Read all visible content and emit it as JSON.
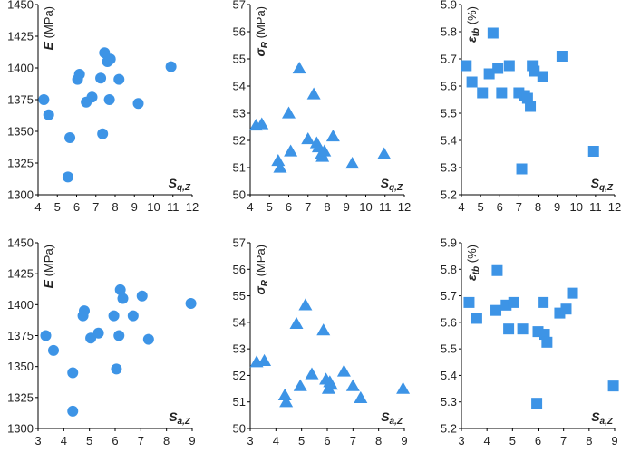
{
  "figure": {
    "marker_color": "#3d94e6"
  },
  "chart_data": [
    {
      "type": "scatter",
      "marker": "circle",
      "ylabel": {
        "sym": "E",
        "sub": "",
        "unit": "(MPa)"
      },
      "xlabel": {
        "sym": "S",
        "sub": "q,Z"
      },
      "xlim": [
        4,
        12
      ],
      "xticks": [
        4,
        5,
        6,
        7,
        8,
        9,
        10,
        11,
        12
      ],
      "ylim": [
        1300,
        1450
      ],
      "yticks": [
        1300,
        1325,
        1350,
        1375,
        1400,
        1425,
        1450
      ],
      "x": [
        4.3,
        4.55,
        5.55,
        5.65,
        6.05,
        6.15,
        6.5,
        6.8,
        7.25,
        7.35,
        7.45,
        7.6,
        7.7,
        7.75,
        8.2,
        9.2,
        10.9
      ],
      "y": [
        1375,
        1363,
        1314,
        1345,
        1391,
        1395,
        1373,
        1377,
        1392,
        1348,
        1412,
        1405,
        1375,
        1407,
        1391,
        1372,
        1401
      ]
    },
    {
      "type": "scatter",
      "marker": "triangle",
      "ylabel": {
        "sym": "σ",
        "sub": "R",
        "unit": "(MPa)"
      },
      "xlabel": {
        "sym": "S",
        "sub": "q,Z"
      },
      "xlim": [
        4,
        12
      ],
      "xticks": [
        4,
        5,
        6,
        7,
        8,
        9,
        10,
        11,
        12
      ],
      "ylim": [
        50,
        57
      ],
      "yticks": [
        50,
        51,
        52,
        53,
        54,
        55,
        56,
        57
      ],
      "x": [
        4.3,
        4.6,
        5.45,
        5.55,
        6.0,
        6.1,
        6.55,
        7.0,
        7.3,
        7.45,
        7.55,
        7.7,
        7.75,
        7.85,
        8.3,
        9.3,
        10.95
      ],
      "y": [
        52.55,
        52.6,
        51.25,
        51.0,
        53.0,
        51.6,
        54.65,
        52.05,
        53.7,
        51.9,
        51.75,
        51.5,
        51.4,
        51.6,
        52.15,
        51.15,
        51.5
      ]
    },
    {
      "type": "scatter",
      "marker": "square",
      "ylabel": {
        "sym": "ε",
        "sub": "tb",
        "unit": "(%)"
      },
      "xlabel": {
        "sym": "S",
        "sub": "q,Z"
      },
      "xlim": [
        4,
        12
      ],
      "xticks": [
        4,
        5,
        6,
        7,
        8,
        9,
        10,
        11,
        12
      ],
      "ylim": [
        5.2,
        5.9
      ],
      "yticks": [
        5.2,
        5.3,
        5.4,
        5.5,
        5.6,
        5.7,
        5.8,
        5.9
      ],
      "x": [
        4.25,
        4.55,
        5.1,
        5.45,
        5.65,
        5.9,
        6.1,
        6.5,
        7.0,
        7.15,
        7.3,
        7.45,
        7.6,
        7.7,
        7.8,
        8.25,
        9.25,
        10.9
      ],
      "y": [
        5.675,
        5.615,
        5.575,
        5.645,
        5.795,
        5.665,
        5.575,
        5.675,
        5.575,
        5.295,
        5.565,
        5.555,
        5.525,
        5.675,
        5.655,
        5.635,
        5.71,
        5.36
      ]
    },
    {
      "type": "scatter",
      "marker": "circle",
      "ylabel": {
        "sym": "E",
        "sub": "",
        "unit": "(MPa)"
      },
      "xlabel": {
        "sym": "S",
        "sub": "a,Z"
      },
      "xlim": [
        3,
        9
      ],
      "xticks": [
        3,
        4,
        5,
        6,
        7,
        8,
        9
      ],
      "ylim": [
        1300,
        1450
      ],
      "yticks": [
        1300,
        1325,
        1350,
        1375,
        1400,
        1425,
        1450
      ],
      "x": [
        3.3,
        3.6,
        4.35,
        4.35,
        4.75,
        4.8,
        5.05,
        5.35,
        5.95,
        6.05,
        6.15,
        6.2,
        6.3,
        6.7,
        7.05,
        7.3,
        8.95
      ],
      "y": [
        1375,
        1363,
        1314,
        1345,
        1391,
        1395,
        1373,
        1377,
        1391,
        1348,
        1375,
        1412,
        1405,
        1391,
        1407,
        1372,
        1401
      ]
    },
    {
      "type": "scatter",
      "marker": "triangle",
      "ylabel": {
        "sym": "σ",
        "sub": "R",
        "unit": "(MPa)"
      },
      "xlabel": {
        "sym": "S",
        "sub": "a,Z"
      },
      "xlim": [
        3,
        9
      ],
      "xticks": [
        3,
        4,
        5,
        6,
        7,
        8,
        9
      ],
      "ylim": [
        50,
        57
      ],
      "yticks": [
        50,
        51,
        52,
        53,
        54,
        55,
        56,
        57
      ],
      "x": [
        3.25,
        3.55,
        4.35,
        4.4,
        4.8,
        4.95,
        5.15,
        5.4,
        5.85,
        5.95,
        6.05,
        6.15,
        6.1,
        6.65,
        7.0,
        7.3,
        8.95
      ],
      "y": [
        52.5,
        52.55,
        51.25,
        51.0,
        53.95,
        51.6,
        54.65,
        52.05,
        53.7,
        51.85,
        51.5,
        51.65,
        51.75,
        52.15,
        51.6,
        51.15,
        51.5
      ]
    },
    {
      "type": "scatter",
      "marker": "square",
      "ylabel": {
        "sym": "ε",
        "sub": "tb",
        "unit": "(%)"
      },
      "xlabel": {
        "sym": "S",
        "sub": "a,Z"
      },
      "xlim": [
        3,
        9
      ],
      "xticks": [
        3,
        4,
        5,
        6,
        7,
        8,
        9
      ],
      "ylim": [
        5.2,
        5.9
      ],
      "yticks": [
        5.2,
        5.3,
        5.4,
        5.5,
        5.6,
        5.7,
        5.8,
        5.9
      ],
      "x": [
        3.3,
        3.6,
        4.35,
        4.4,
        4.75,
        4.85,
        5.05,
        5.4,
        5.95,
        6.0,
        6.2,
        6.25,
        6.35,
        6.85,
        7.1,
        7.35,
        8.95
      ],
      "y": [
        5.675,
        5.615,
        5.645,
        5.795,
        5.665,
        5.575,
        5.675,
        5.575,
        5.295,
        5.565,
        5.675,
        5.555,
        5.525,
        5.635,
        5.65,
        5.71,
        5.36
      ]
    }
  ]
}
